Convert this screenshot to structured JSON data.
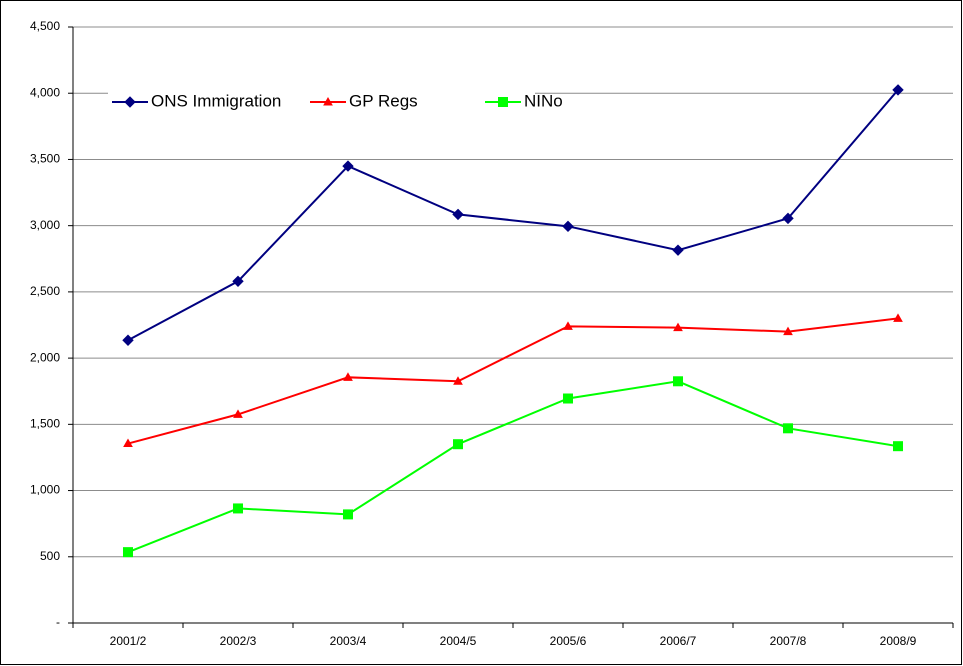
{
  "chart_data": {
    "type": "line",
    "categories": [
      "2001/2",
      "2002/3",
      "2003/4",
      "2004/5",
      "2005/6",
      "2006/7",
      "2007/8",
      "2008/9"
    ],
    "series": [
      {
        "name": "ONS Immigration",
        "color": "#000080",
        "marker": "diamond",
        "values": [
          2135,
          2580,
          3450,
          3085,
          2995,
          2815,
          3055,
          4025
        ]
      },
      {
        "name": "GP Regs",
        "color": "#ff0000",
        "marker": "triangle",
        "values": [
          1355,
          1575,
          1855,
          1825,
          2240,
          2230,
          2200,
          2300
        ]
      },
      {
        "name": "NINo",
        "color": "#00ff00",
        "marker": "square",
        "values": [
          535,
          865,
          820,
          1350,
          1695,
          1825,
          1470,
          1335
        ]
      }
    ],
    "ylim": [
      0,
      4500
    ],
    "yticks": [
      {
        "value": 0,
        "label": "-"
      },
      500,
      {
        "value": 1000,
        "label": "1,000"
      },
      {
        "value": 1500,
        "label": "1,500"
      },
      {
        "value": 2000,
        "label": "2,000"
      },
      {
        "value": 2500,
        "label": "2,500"
      },
      {
        "value": 3000,
        "label": "3,000"
      },
      {
        "value": 3500,
        "label": "3,500"
      },
      {
        "value": 4000,
        "label": "4,000"
      },
      {
        "value": 4500,
        "label": "4,500"
      }
    ],
    "grid": true,
    "legend": "top-left"
  }
}
